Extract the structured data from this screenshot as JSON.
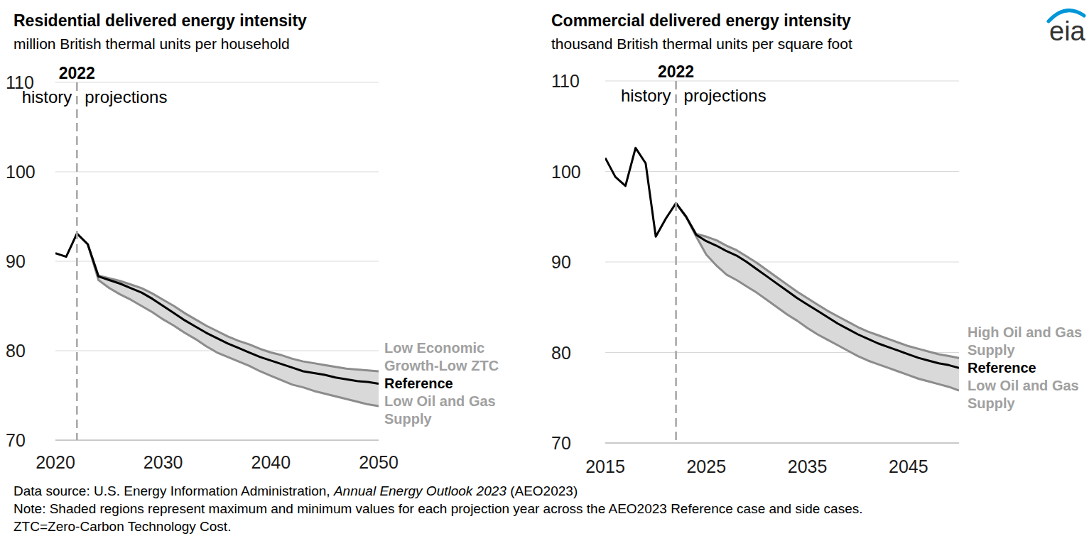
{
  "chart_data": [
    {
      "type": "line",
      "title": "Residential delivered energy intensity",
      "subtitle": "million British thermal units per household",
      "x": [
        2020,
        2021,
        2022,
        2023,
        2024,
        2025,
        2026,
        2027,
        2028,
        2029,
        2030,
        2031,
        2032,
        2033,
        2034,
        2035,
        2036,
        2037,
        2038,
        2039,
        2040,
        2041,
        2042,
        2043,
        2044,
        2045,
        2046,
        2047,
        2048,
        2049,
        2050
      ],
      "series": [
        {
          "name": "Reference",
          "color": "#000000",
          "values": [
            90.9,
            90.5,
            93.1,
            91.9,
            88.3,
            87.9,
            87.5,
            87.0,
            86.5,
            85.8,
            85.0,
            84.2,
            83.4,
            82.7,
            82.0,
            81.4,
            80.8,
            80.3,
            79.8,
            79.3,
            78.9,
            78.5,
            78.1,
            77.7,
            77.5,
            77.3,
            77.0,
            76.8,
            76.6,
            76.5,
            76.3
          ]
        },
        {
          "name": "Low Economic Growth-Low ZTC",
          "color": "#8c8c8c",
          "values": [
            null,
            null,
            93.1,
            91.9,
            88.4,
            88.1,
            87.8,
            87.4,
            87.0,
            86.4,
            85.7,
            85.0,
            84.2,
            83.5,
            82.8,
            82.2,
            81.6,
            81.1,
            80.7,
            80.2,
            79.8,
            79.5,
            79.1,
            78.8,
            78.6,
            78.4,
            78.2,
            78.0,
            77.9,
            77.8,
            77.7
          ]
        },
        {
          "name": "Low Oil and Gas Supply",
          "color": "#8c8c8c",
          "values": [
            null,
            null,
            93.1,
            91.9,
            87.9,
            87.0,
            86.3,
            85.7,
            85.0,
            84.3,
            83.5,
            82.8,
            82.0,
            81.3,
            80.5,
            79.8,
            79.3,
            78.8,
            78.3,
            77.7,
            77.2,
            76.7,
            76.2,
            75.9,
            75.5,
            75.2,
            74.9,
            74.6,
            74.3,
            74.0,
            73.8
          ]
        }
      ],
      "xlim": [
        2020,
        2050
      ],
      "xticks": [
        2020,
        2030,
        2040,
        2050
      ],
      "ylim": [
        70,
        110
      ],
      "yticks": [
        70,
        80,
        90,
        100,
        110
      ],
      "grid": true,
      "annotations": [
        {
          "x": 2022,
          "left_text": "history",
          "right_text": "projections",
          "line_style": "dashed"
        }
      ]
    },
    {
      "type": "line",
      "title": "Commercial delivered energy intensity",
      "subtitle": "thousand British thermal units per square foot",
      "x": [
        2015,
        2016,
        2017,
        2018,
        2019,
        2020,
        2021,
        2022,
        2023,
        2024,
        2025,
        2026,
        2027,
        2028,
        2029,
        2030,
        2031,
        2032,
        2033,
        2034,
        2035,
        2036,
        2037,
        2038,
        2039,
        2040,
        2041,
        2042,
        2043,
        2044,
        2045,
        2046,
        2047,
        2048,
        2049,
        2050
      ],
      "series": [
        {
          "name": "Reference",
          "color": "#000000",
          "values": [
            101.5,
            99.4,
            98.4,
            102.6,
            100.9,
            92.8,
            94.8,
            96.5,
            95.0,
            93.0,
            92.3,
            91.8,
            91.2,
            90.7,
            90.0,
            89.2,
            88.4,
            87.6,
            86.8,
            86.0,
            85.3,
            84.6,
            83.9,
            83.2,
            82.6,
            82.0,
            81.5,
            81.0,
            80.6,
            80.2,
            79.8,
            79.4,
            79.1,
            78.8,
            78.6,
            78.3
          ]
        },
        {
          "name": "High Oil and Gas Supply",
          "color": "#8c8c8c",
          "values": [
            null,
            null,
            null,
            null,
            null,
            null,
            null,
            96.5,
            95.0,
            93.1,
            92.8,
            92.4,
            91.8,
            91.3,
            90.6,
            89.9,
            89.1,
            88.3,
            87.5,
            86.7,
            86.0,
            85.3,
            84.6,
            84.0,
            83.4,
            82.8,
            82.3,
            81.9,
            81.5,
            81.1,
            80.7,
            80.4,
            80.1,
            79.8,
            79.6,
            79.4
          ]
        },
        {
          "name": "Low Oil and Gas Supply",
          "color": "#8c8c8c",
          "values": [
            null,
            null,
            null,
            null,
            null,
            null,
            null,
            96.5,
            95.0,
            92.8,
            90.8,
            89.6,
            88.6,
            88.0,
            87.3,
            86.6,
            85.8,
            85.0,
            84.2,
            83.5,
            82.7,
            82.0,
            81.4,
            80.8,
            80.2,
            79.6,
            79.1,
            78.7,
            78.3,
            77.9,
            77.5,
            77.1,
            76.8,
            76.5,
            76.2,
            75.8
          ]
        }
      ],
      "xlim": [
        2015,
        2050
      ],
      "xticks": [
        2015,
        2025,
        2035,
        2045
      ],
      "ylim": [
        70,
        110
      ],
      "yticks": [
        70,
        80,
        90,
        100,
        110
      ],
      "grid": true,
      "annotations": [
        {
          "x": 2022,
          "left_text": "history",
          "right_text": "projections",
          "line_style": "dashed"
        }
      ]
    }
  ],
  "logo": "eia",
  "source": {
    "before": "Data source: U.S. Energy Information Administration, ",
    "italic": "Annual Energy Outlook 2023",
    "after": " (AEO2023)"
  },
  "notes": [
    "Note: Shaded regions represent maximum and minimum values for each projection year across the AEO2023 Reference case and side cases.",
    "ZTC=Zero-Carbon Technology Cost."
  ]
}
